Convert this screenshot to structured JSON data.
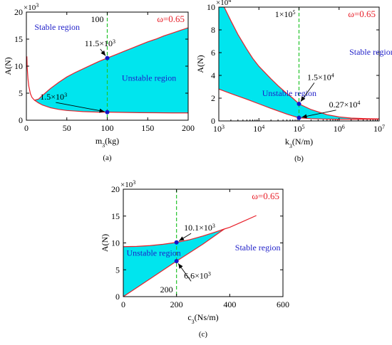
{
  "colors": {
    "region_fill": "#00e5ee",
    "boundary_line": "#e8202a",
    "guide_line": "#22c32a",
    "marker": "#1414c8",
    "region_text": "#1e1ec8",
    "omega_text": "#e8202a",
    "axis": "#000000"
  },
  "chart_data": [
    {
      "id": "a",
      "type": "area",
      "caption": "(a)",
      "xlabel": "m",
      "xlabel_sub": "3",
      "xlabel_unit": "(kg)",
      "ylabel": "A(N)",
      "y_multiplier": "×10",
      "y_multiplier_exp": "3",
      "xlim": [
        0,
        200
      ],
      "ylim": [
        0,
        20
      ],
      "xticks": [
        0,
        50,
        100,
        150,
        200
      ],
      "yticks": [
        0,
        5,
        10,
        15,
        20
      ],
      "omega_label": "ω=0.65",
      "guide_x": 100,
      "guide_label": "100",
      "regions": [
        {
          "text": "Stable region",
          "x": 10,
          "y": 16.7
        },
        {
          "text": "Unstable region",
          "x": 118,
          "y": 7.3
        }
      ],
      "upper_curve": {
        "x": [
          0.6,
          1,
          2,
          3,
          5,
          7,
          10,
          15,
          20,
          30,
          40,
          50,
          60,
          70,
          80,
          90,
          100,
          110,
          120,
          130,
          140,
          150,
          160,
          170,
          180,
          190,
          200
        ],
        "y": [
          11.8,
          9.8,
          7.6,
          6.3,
          4.9,
          4.2,
          3.7,
          3.9,
          4.6,
          5.9,
          7.0,
          8.0,
          8.8,
          9.5,
          10.2,
          10.9,
          11.5,
          12.1,
          12.7,
          13.3,
          13.9,
          14.5,
          15.0,
          15.6,
          16.1,
          16.6,
          17.1
        ]
      },
      "lower_curve": {
        "x": [
          10,
          15,
          20,
          30,
          40,
          50,
          60,
          70,
          80,
          90,
          100,
          120,
          140,
          160,
          180,
          200
        ],
        "y": [
          3.7,
          3.2,
          2.8,
          2.3,
          2.0,
          1.8,
          1.7,
          1.6,
          1.55,
          1.5,
          1.5,
          1.45,
          1.4,
          1.38,
          1.35,
          1.35
        ]
      },
      "points": [
        {
          "x": 100,
          "y": 11.5,
          "label": "11.5×10",
          "label_exp": "3",
          "label_x": 72,
          "label_y": 13.7
        },
        {
          "x": 100,
          "y": 1.5,
          "label": "1.5×10",
          "label_exp": "3",
          "label_x": 17,
          "label_y": 3.8
        }
      ]
    },
    {
      "id": "b",
      "type": "area",
      "caption": "(b)",
      "xlabel": "k",
      "xlabel_sub": "3",
      "xlabel_unit": "(N/m)",
      "ylabel": "A(N)",
      "y_multiplier": "×10",
      "y_multiplier_exp": "4",
      "x_scale": "log",
      "xlim": [
        1000,
        10000000
      ],
      "ylim": [
        0,
        10
      ],
      "xticks": [
        1000,
        10000,
        100000,
        1000000,
        10000000
      ],
      "xtick_labels": [
        "10",
        "10",
        "10",
        "10",
        "10"
      ],
      "xtick_exps": [
        "3",
        "4",
        "5",
        "6",
        "7"
      ],
      "yticks": [
        0,
        2,
        4,
        6,
        8,
        10
      ],
      "omega_label": "ω=0.65",
      "guide_x": 100000,
      "guide_label": "1×10",
      "guide_label_exp": "5",
      "regions": [
        {
          "text": "Stable region",
          "x": 1800000,
          "y": 5.8
        },
        {
          "text": "Unstable region",
          "x": 12000,
          "y": 2.2
        }
      ],
      "upper_curve": {
        "x": [
          1000,
          1500,
          2000,
          3000,
          5000,
          7000,
          10000,
          20000,
          30000,
          50000,
          70000,
          100000,
          200000,
          300000,
          500000,
          1000000,
          2000000,
          5000000,
          10000000
        ],
        "y": [
          11.0,
          9.7,
          8.8,
          7.6,
          6.3,
          5.5,
          4.8,
          3.7,
          3.1,
          2.4,
          2.0,
          1.5,
          1.0,
          0.8,
          0.55,
          0.35,
          0.25,
          0.2,
          0.18
        ]
      },
      "lower_curve": {
        "x": [
          1000,
          2000,
          5000,
          10000,
          20000,
          50000,
          100000,
          200000,
          500000,
          1000000,
          2000000,
          5000000,
          10000000
        ],
        "y": [
          2.8,
          2.4,
          1.9,
          1.5,
          1.1,
          0.6,
          0.27,
          0.2,
          0.16,
          0.15,
          0.15,
          0.15,
          0.15
        ]
      },
      "points": [
        {
          "x": 100000,
          "y": 1.5,
          "label": "1.5×10",
          "label_exp": "4",
          "label_x": 160000,
          "label_y": 3.6
        },
        {
          "x": 100000,
          "y": 0.27,
          "label": "0.27×10",
          "label_exp": "4",
          "label_x": 560000,
          "label_y": 1.2
        }
      ]
    },
    {
      "id": "c",
      "type": "area",
      "caption": "(c)",
      "xlabel": "c",
      "xlabel_sub": "3",
      "xlabel_unit": "(Ns/m)",
      "ylabel": "A(N)",
      "y_multiplier": "×10",
      "y_multiplier_exp": "3",
      "xlim": [
        0,
        600
      ],
      "ylim": [
        0,
        20
      ],
      "xticks": [
        0,
        200,
        400,
        600
      ],
      "yticks": [
        0,
        5,
        10,
        15,
        20
      ],
      "omega_label": "ω=0.65",
      "guide_x": 200,
      "guide_label": "200",
      "regions": [
        {
          "text": "Stable region",
          "x": 420,
          "y": 8.6
        },
        {
          "text": "Unstable region",
          "x": 12,
          "y": 7.6
        }
      ],
      "upper_curve": {
        "x": [
          0,
          50,
          100,
          150,
          200,
          250,
          300,
          350,
          380,
          400,
          450,
          500
        ],
        "y": [
          9.3,
          9.35,
          9.5,
          9.75,
          10.1,
          10.6,
          11.3,
          12.1,
          12.6,
          12.9,
          14.0,
          15.1
        ]
      },
      "lower_curve": {
        "x": [
          0,
          100,
          200,
          300,
          380
        ],
        "y": [
          0,
          3.3,
          6.6,
          9.8,
          12.6
        ]
      },
      "points": [
        {
          "x": 200,
          "y": 10.1,
          "label": "10.1×10",
          "label_exp": "3",
          "label_x": 228,
          "label_y": 12.3
        },
        {
          "x": 200,
          "y": 6.6,
          "label": "6.6×10",
          "label_exp": "3",
          "label_x": 228,
          "label_y": 3.4
        }
      ]
    }
  ]
}
